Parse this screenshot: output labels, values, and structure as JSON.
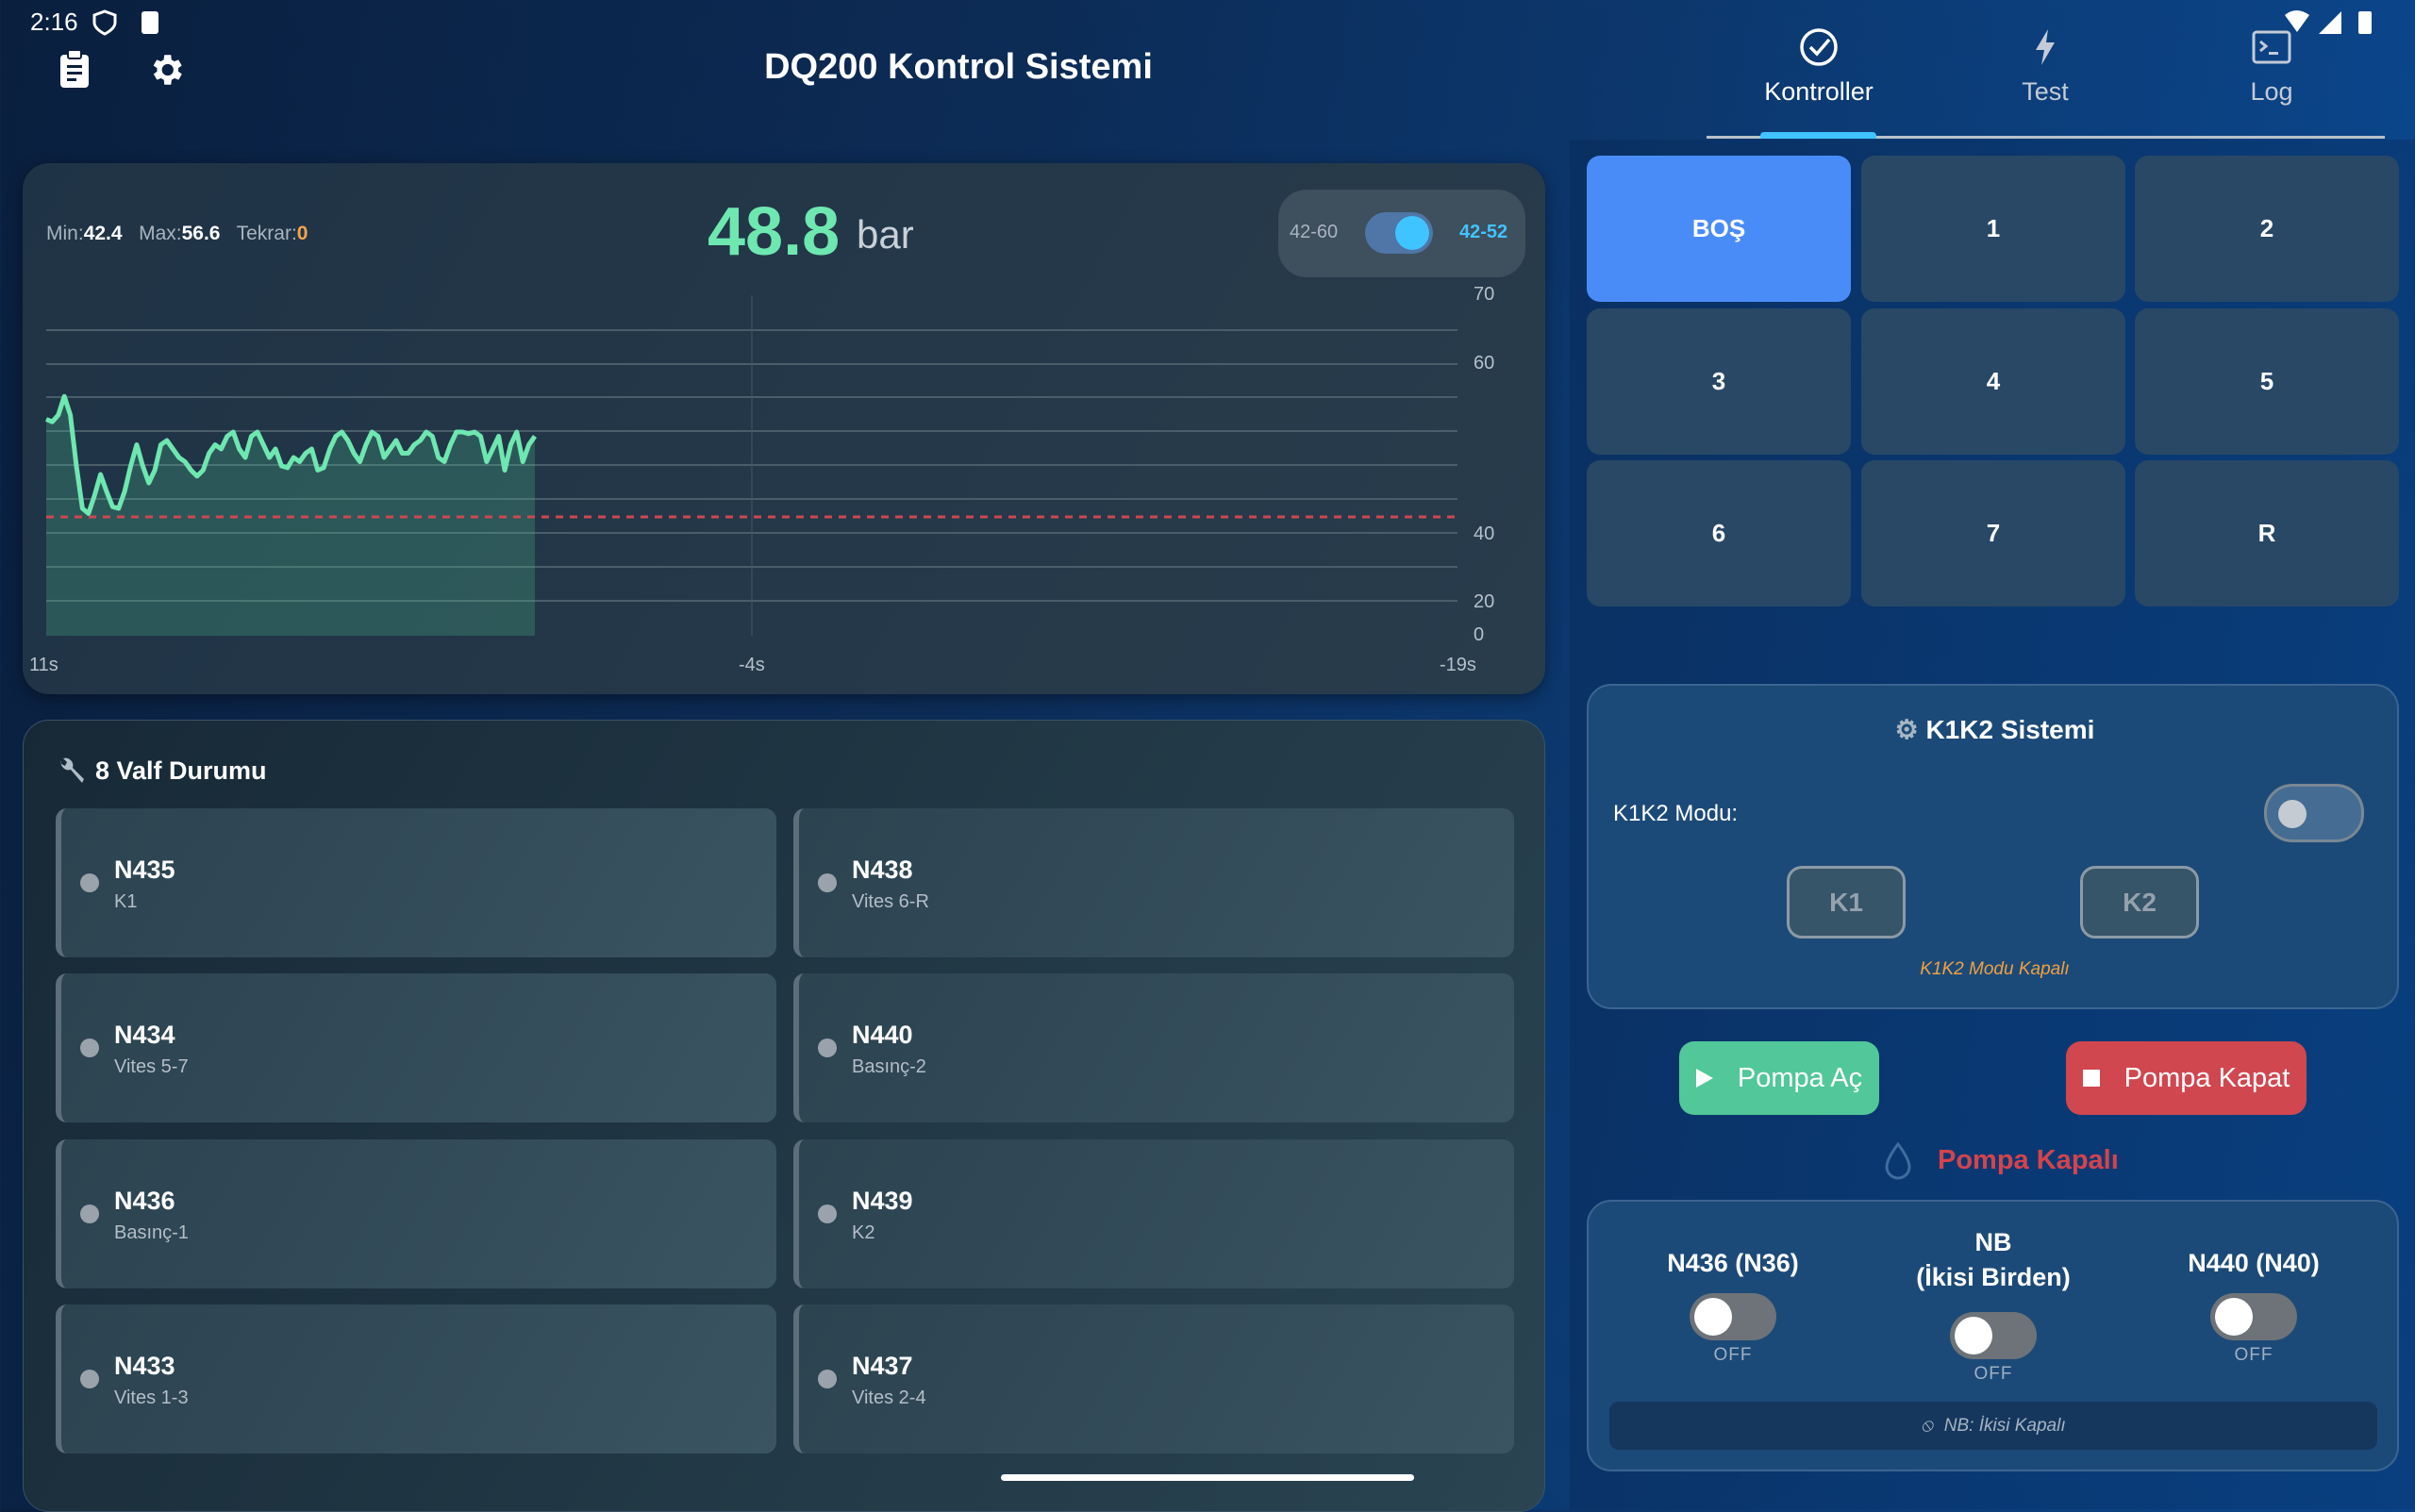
{
  "status_bar": {
    "time": "2:16"
  },
  "header": {
    "title": "DQ200 Kontrol Sistemi",
    "tabs": [
      {
        "label": "Kontroller",
        "icon": "check-circle-icon",
        "active": true
      },
      {
        "label": "Test",
        "icon": "bolt-icon"
      },
      {
        "label": "Log",
        "icon": "terminal-icon"
      }
    ]
  },
  "pressure": {
    "min_label": "Min:",
    "min": "42.4",
    "max_label": "Max:",
    "max": "56.6",
    "repeat_label": "Tekrar:",
    "repeat": "0",
    "value": "48.8",
    "unit": "bar",
    "range_left": "42-60",
    "range_right": "42-52",
    "range_toggle_on": true
  },
  "chart_data": {
    "type": "line",
    "y_ticks": [
      "70",
      "60",
      "40",
      "20",
      "0"
    ],
    "x_ticks": [
      "11s",
      "-4s",
      "-19s"
    ],
    "threshold": 42,
    "values": [
      53.5,
      53.2,
      54,
      56.2,
      54,
      48,
      43,
      42.4,
      44.5,
      47,
      45,
      43.2,
      43,
      45,
      48,
      50.5,
      48,
      46,
      47.5,
      50.5,
      51,
      50,
      49,
      48.5,
      47.5,
      46.8,
      47.5,
      49.5,
      50.5,
      50,
      51.5,
      52,
      50,
      49,
      51.5,
      52,
      50.5,
      49,
      50,
      48,
      47.8,
      49,
      48.5,
      49.5,
      50,
      47.5,
      47.8,
      50,
      51.5,
      52,
      51,
      49.5,
      48.5,
      50.5,
      52,
      51.5,
      49,
      50,
      51,
      49.5,
      49.5,
      50.5,
      51,
      52,
      51.5,
      49,
      48.5,
      50.5,
      52,
      52,
      51.8,
      52,
      51.5,
      48.5,
      50,
      51.5,
      47.5,
      50.5,
      52,
      48.5,
      50.5,
      51.5
    ]
  },
  "valves": {
    "title": "8 Valf Durumu",
    "items": [
      {
        "name": "N435",
        "desc": "K1"
      },
      {
        "name": "N438",
        "desc": "Vites 6-R"
      },
      {
        "name": "N434",
        "desc": "Vites 5-7"
      },
      {
        "name": "N440",
        "desc": "Basınç-2"
      },
      {
        "name": "N436",
        "desc": "Basınç-1"
      },
      {
        "name": "N439",
        "desc": "K2"
      },
      {
        "name": "N433",
        "desc": "Vites 1-3"
      },
      {
        "name": "N437",
        "desc": "Vites 2-4"
      }
    ]
  },
  "gears": [
    "BOŞ",
    "1",
    "2",
    "3",
    "4",
    "5",
    "6",
    "7",
    "R"
  ],
  "k1k2": {
    "title": "K1K2 Sistemi",
    "mode_label": "K1K2 Modu:",
    "k1": "K1",
    "k2": "K2",
    "status": "K1K2 Modu Kapalı"
  },
  "pump": {
    "open": "Pompa Aç",
    "close": "Pompa Kapat",
    "status": "Pompa Kapalı"
  },
  "nb": {
    "left": "N436 (N36)",
    "mid_1": "NB",
    "mid_2": "(İkisi Birden)",
    "right": "N440 (N40)",
    "off": "OFF",
    "info": "NB: İkisi Kapalı"
  },
  "colors": {
    "accent": "#4a8cf7",
    "green": "#6ee7b0",
    "red": "#d0474f"
  }
}
